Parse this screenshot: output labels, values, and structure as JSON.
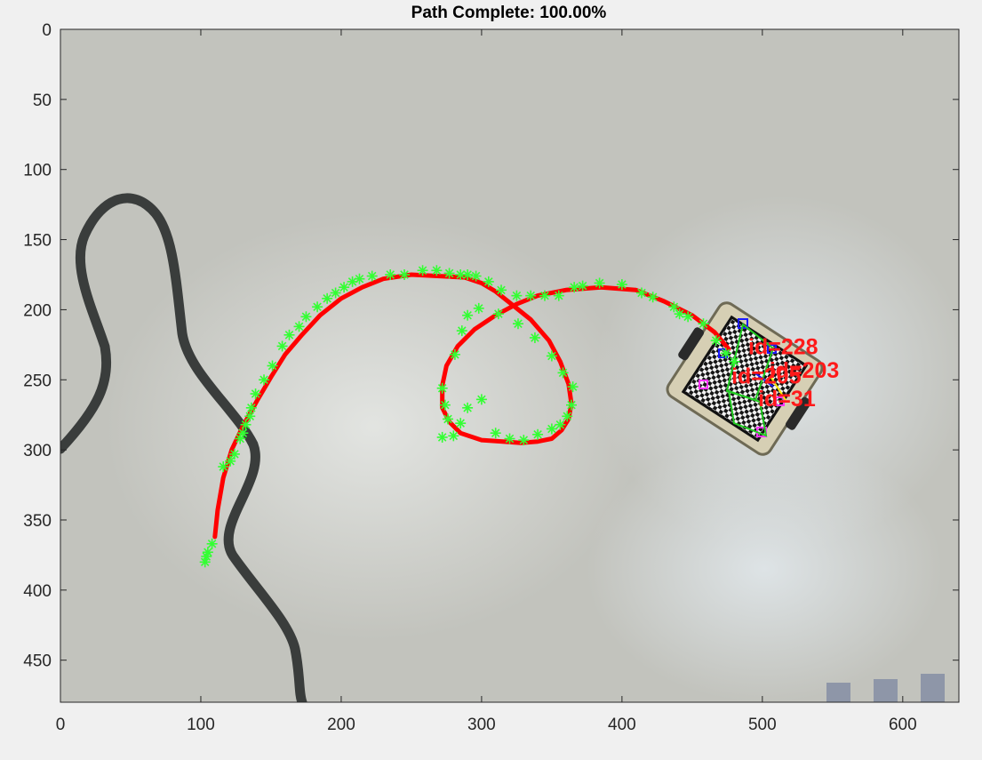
{
  "title": "Path Complete: 100.00%",
  "axes": {
    "xlim": [
      0,
      640
    ],
    "ylim": [
      0,
      480
    ],
    "y_direction": "reversed",
    "x_ticks": [
      0,
      100,
      200,
      300,
      400,
      500,
      600
    ],
    "y_ticks": [
      0,
      50,
      100,
      150,
      200,
      250,
      300,
      350,
      400,
      450
    ]
  },
  "colors": {
    "path_line": "#ff0000",
    "waypoint_marker": "#33ff33",
    "tag_label": "#ff1a1a",
    "floor": "#c2c3bd",
    "drawn_line": "#3a3d3c"
  },
  "tags": [
    {
      "label": "id=228",
      "x": 490,
      "y": 226
    },
    {
      "label": "id=203",
      "x": 505,
      "y": 243
    },
    {
      "label": "id=205",
      "x": 478,
      "y": 247
    },
    {
      "label": "id=31",
      "x": 497,
      "y": 263
    }
  ],
  "chart_data": {
    "type": "line",
    "title": "Path Complete: 100.00%",
    "xlim": [
      0,
      640
    ],
    "ylim": [
      0,
      480
    ],
    "series": [
      {
        "style": "red-line",
        "x": [
          110,
          112,
          116,
          122,
          130,
          140,
          150,
          160,
          172,
          185,
          200,
          215,
          230,
          250,
          270,
          288,
          300,
          310,
          320,
          335,
          348,
          356,
          362,
          364,
          362,
          357,
          350,
          340,
          328,
          315,
          300,
          285,
          277,
          272,
          272,
          275,
          283,
          295,
          310,
          325,
          340,
          360,
          385,
          410,
          430,
          450,
          466,
          476
        ],
        "y": [
          362,
          343,
          320,
          300,
          283,
          265,
          248,
          232,
          218,
          204,
          192,
          184,
          178,
          175,
          176,
          177,
          181,
          187,
          195,
          207,
          222,
          237,
          253,
          267,
          278,
          286,
          292,
          294,
          295,
          294,
          293,
          288,
          280,
          270,
          254,
          240,
          226,
          214,
          204,
          196,
          190,
          186,
          184,
          186,
          194,
          204,
          216,
          228
        ]
      },
      {
        "style": "green-asterisk",
        "x": [
          103,
          104,
          105,
          108,
          116,
          121,
          124,
          128,
          130,
          132,
          135,
          136,
          139,
          145,
          151,
          158,
          163,
          170,
          175,
          183,
          190,
          196,
          202,
          208,
          213,
          222,
          235,
          245,
          258,
          268,
          277,
          285,
          290,
          296,
          305,
          314,
          325,
          335,
          345,
          355,
          366,
          372,
          384,
          400,
          414,
          422,
          437,
          441,
          447,
          458,
          467,
          474,
          480,
          272,
          274,
          276,
          272,
          280,
          285,
          290,
          300,
          310,
          320,
          330,
          340,
          350,
          356,
          361,
          364,
          365,
          358,
          350,
          338,
          326,
          312,
          298,
          290,
          286,
          281
        ],
        "y": [
          380,
          376,
          373,
          367,
          312,
          308,
          303,
          292,
          288,
          282,
          276,
          270,
          260,
          250,
          240,
          226,
          218,
          212,
          205,
          198,
          192,
          188,
          184,
          180,
          178,
          176,
          175,
          175,
          172,
          172,
          174,
          175,
          175,
          176,
          180,
          186,
          190,
          190,
          190,
          190,
          184,
          183,
          181,
          182,
          188,
          191,
          198,
          203,
          205,
          210,
          222,
          231,
          237,
          256,
          268,
          278,
          291,
          290,
          281,
          270,
          264,
          288,
          292,
          293,
          289,
          285,
          282,
          276,
          268,
          255,
          245,
          233,
          220,
          210,
          203,
          199,
          204,
          215,
          232
        ]
      }
    ]
  }
}
